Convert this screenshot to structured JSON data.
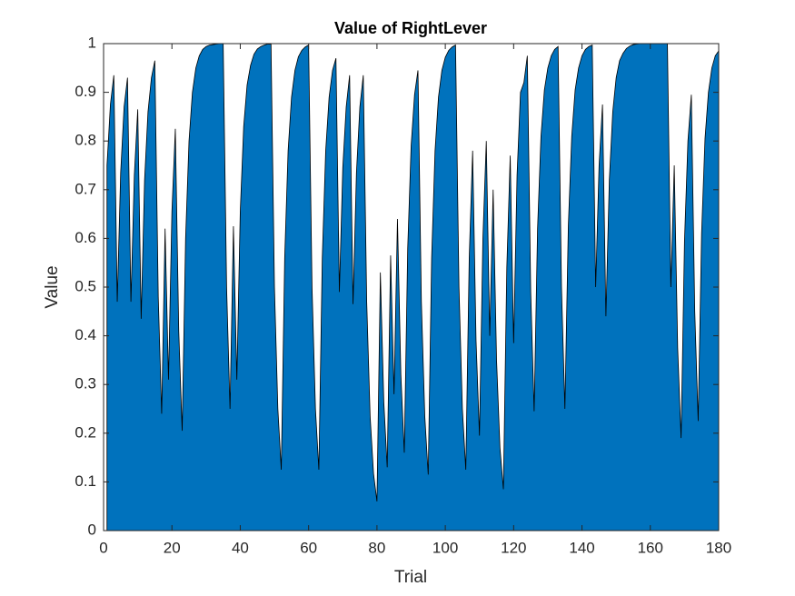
{
  "chart_data": {
    "type": "area",
    "title": "Value of RightLever",
    "xlabel": "Trial",
    "ylabel": "Value",
    "x": [
      1,
      2,
      3,
      4,
      5,
      6,
      7,
      8,
      9,
      10,
      11,
      12,
      13,
      14,
      15,
      16,
      17,
      18,
      19,
      20,
      21,
      22,
      23,
      24,
      25,
      26,
      27,
      28,
      29,
      30,
      31,
      32,
      33,
      34,
      35,
      36,
      37,
      38,
      39,
      40,
      41,
      42,
      43,
      44,
      45,
      46,
      47,
      48,
      49,
      50,
      51,
      52,
      53,
      54,
      55,
      56,
      57,
      58,
      59,
      60,
      61,
      62,
      63,
      64,
      65,
      66,
      67,
      68,
      69,
      70,
      71,
      72,
      73,
      74,
      75,
      76,
      77,
      78,
      79,
      80,
      81,
      82,
      83,
      84,
      85,
      86,
      87,
      88,
      89,
      90,
      91,
      92,
      93,
      94,
      95,
      96,
      97,
      98,
      99,
      100,
      101,
      102,
      103,
      104,
      105,
      106,
      107,
      108,
      109,
      110,
      111,
      112,
      113,
      114,
      115,
      116,
      117,
      118,
      119,
      120,
      121,
      122,
      123,
      124,
      125,
      126,
      127,
      128,
      129,
      130,
      131,
      132,
      133,
      134,
      135,
      136,
      137,
      138,
      139,
      140,
      141,
      142,
      143,
      144,
      145,
      146,
      147,
      148,
      149,
      150,
      151,
      152,
      153,
      154,
      155,
      156,
      157,
      158,
      159,
      160,
      161,
      162,
      163,
      164,
      165,
      166,
      167,
      168,
      169,
      170,
      171,
      172,
      173,
      174,
      175,
      176,
      177,
      178,
      179,
      180
    ],
    "values": [
      0.75,
      0.875,
      0.935,
      0.47,
      0.735,
      0.87,
      0.93,
      0.47,
      0.73,
      0.865,
      0.435,
      0.72,
      0.86,
      0.93,
      0.965,
      0.48,
      0.24,
      0.62,
      0.31,
      0.655,
      0.825,
      0.41,
      0.205,
      0.6,
      0.8,
      0.9,
      0.95,
      0.975,
      0.988,
      0.994,
      0.997,
      0.998,
      0.999,
      1,
      1,
      0.5,
      0.25,
      0.625,
      0.31,
      0.655,
      0.83,
      0.915,
      0.955,
      0.978,
      0.989,
      0.994,
      0.997,
      0.999,
      0.999,
      0.5,
      0.25,
      0.125,
      0.56,
      0.78,
      0.89,
      0.945,
      0.973,
      0.986,
      0.993,
      0.997,
      0.5,
      0.25,
      0.125,
      0.56,
      0.78,
      0.89,
      0.945,
      0.97,
      0.49,
      0.745,
      0.87,
      0.935,
      0.465,
      0.735,
      0.87,
      0.935,
      0.47,
      0.235,
      0.117,
      0.06,
      0.53,
      0.265,
      0.13,
      0.565,
      0.28,
      0.64,
      0.32,
      0.16,
      0.58,
      0.79,
      0.895,
      0.945,
      0.47,
      0.235,
      0.115,
      0.56,
      0.78,
      0.89,
      0.945,
      0.972,
      0.986,
      0.993,
      0.997,
      0.5,
      0.25,
      0.125,
      0.56,
      0.78,
      0.39,
      0.195,
      0.6,
      0.8,
      0.4,
      0.7,
      0.35,
      0.17,
      0.085,
      0.54,
      0.77,
      0.385,
      0.73,
      0.9,
      0.92,
      0.975,
      0.49,
      0.245,
      0.62,
      0.81,
      0.905,
      0.95,
      0.975,
      0.988,
      0.994,
      0.5,
      0.25,
      0.625,
      0.81,
      0.905,
      0.95,
      0.975,
      0.988,
      0.994,
      0.997,
      0.5,
      0.75,
      0.875,
      0.44,
      0.72,
      0.86,
      0.93,
      0.965,
      0.98,
      0.99,
      0.995,
      0.998,
      0.999,
      1,
      1,
      1,
      1,
      1,
      1,
      1,
      1,
      1,
      0.5,
      0.75,
      0.375,
      0.19,
      0.595,
      0.8,
      0.895,
      0.45,
      0.225,
      0.61,
      0.805,
      0.9,
      0.95,
      0.975,
      0.985
    ],
    "color": "#0072bd",
    "xlim": [
      0,
      180
    ],
    "xticks": [
      0,
      20,
      40,
      60,
      80,
      100,
      120,
      140,
      160,
      180
    ],
    "ylim": [
      0,
      1
    ],
    "yticks": [
      0,
      0.1,
      0.2,
      0.3,
      0.4,
      0.5,
      0.6,
      0.7,
      0.8,
      0.9,
      1
    ]
  }
}
